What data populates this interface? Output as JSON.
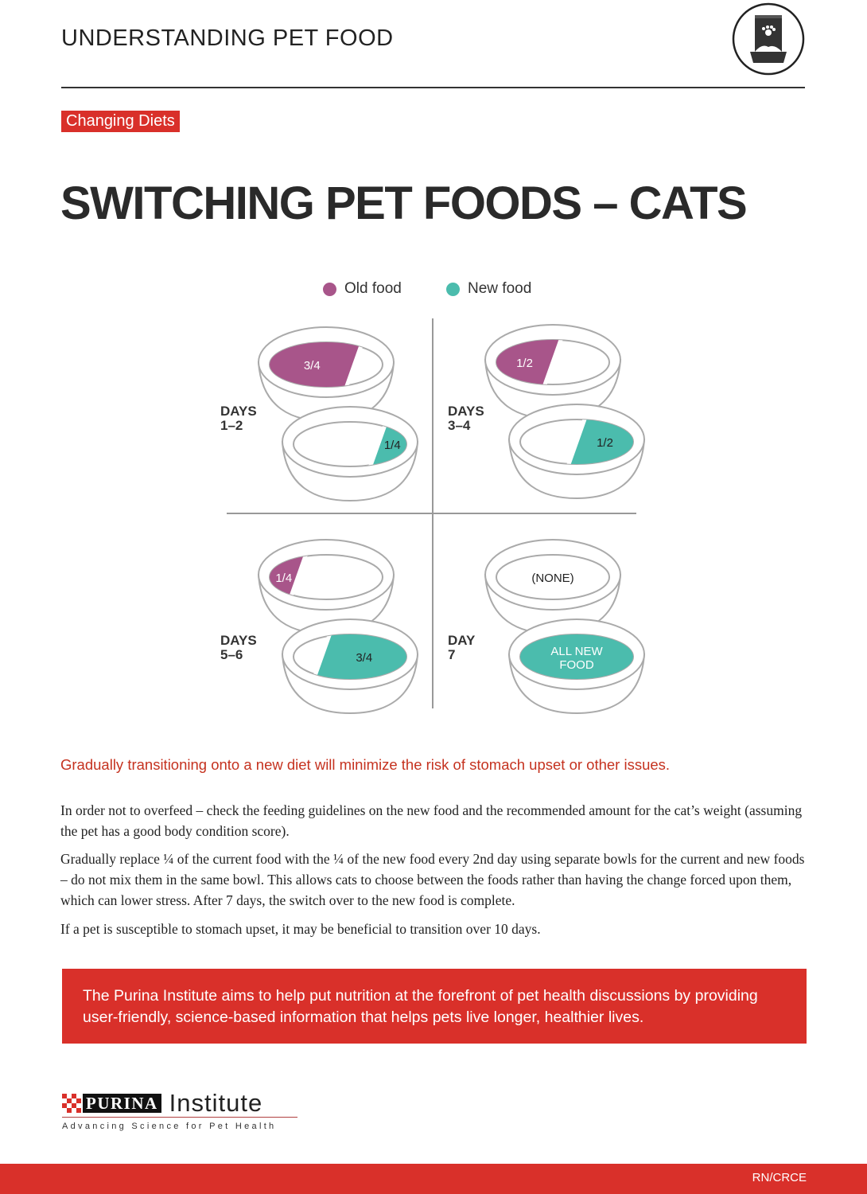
{
  "header": {
    "title": "UNDERSTANDING PET FOOD",
    "icon": "pet-food-bag-icon"
  },
  "badge": "Changing Diets",
  "title": "SWITCHING PET FOODS – CATS",
  "legend": [
    {
      "label": "Old food",
      "color": "#a8558a"
    },
    {
      "label": "New food",
      "color": "#4bbcad"
    }
  ],
  "stages": [
    {
      "days_line1": "DAYS",
      "days_line2": "1–2",
      "old": {
        "fraction": 0.75,
        "label": "3/4"
      },
      "new": {
        "fraction": 0.25,
        "label": "1/4"
      }
    },
    {
      "days_line1": "DAYS",
      "days_line2": "3–4",
      "old": {
        "fraction": 0.5,
        "label": "1/2"
      },
      "new": {
        "fraction": 0.5,
        "label": "1/2"
      }
    },
    {
      "days_line1": "DAYS",
      "days_line2": "5–6",
      "old": {
        "fraction": 0.25,
        "label": "1/4"
      },
      "new": {
        "fraction": 0.75,
        "label": "3/4"
      }
    },
    {
      "days_line1": "DAY",
      "days_line2": "7",
      "old": {
        "fraction": 0,
        "label": "(NONE)"
      },
      "new": {
        "fraction": 1,
        "label": "ALL NEW FOOD"
      }
    }
  ],
  "lead": "Gradually transitioning onto a new diet will minimize the risk of stomach upset or other issues.",
  "paragraphs": [
    "In order not to overfeed – check the feeding guidelines on the new food and the recommended amount for the cat’s weight (assuming the pet has a good body condition score).",
    "Gradually replace ¼ of the current food with the ¼ of the new food every 2nd day using separate bowls for the current and new foods – do not mix them in the same bowl. This allows cats to choose between the foods rather than having the change forced upon them, which can lower stress. After 7 days, the switch over to the new food is complete.",
    "If a pet is susceptible to stomach upset, it may be beneficial to transition over 10 days."
  ],
  "banner": "The Purina Institute aims to help put nutrition at the forefront of pet health discussions by providing user-friendly, science-based information that helps pets live longer, healthier lives.",
  "logo": {
    "brand": "PURINA",
    "name": "Institute",
    "tagline": "Advancing Science for Pet Health"
  },
  "footer_code": "RN/CRCE",
  "colors": {
    "accent": "#d9302a",
    "old_food": "#a8558a",
    "new_food": "#4bbcad"
  }
}
